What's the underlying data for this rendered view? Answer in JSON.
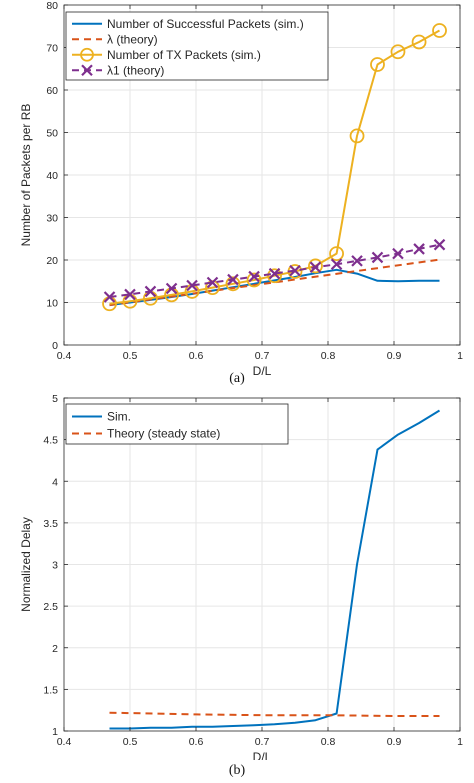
{
  "captions": {
    "a": "(a)",
    "b": "(b)"
  },
  "colors": {
    "blue": "#0072BD",
    "orange": "#D95319",
    "gold": "#EDB120",
    "purple": "#7E2F8E",
    "grid": "#e6e6e6",
    "axis": "#262626"
  },
  "chart_data": [
    {
      "type": "line",
      "xlabel": "D/L",
      "ylabel": "Number of Packets per RB",
      "xlim": [
        0.4,
        1.0
      ],
      "ylim": [
        0,
        80
      ],
      "xticks": [
        0.4,
        0.5,
        0.6,
        0.7,
        0.8,
        0.9,
        1
      ],
      "xtick_labels": [
        "0.4",
        "0.5",
        "0.6",
        "0.7",
        "0.8",
        "0.9",
        "1"
      ],
      "yticks": [
        0,
        10,
        20,
        30,
        40,
        50,
        60,
        70,
        80
      ],
      "ytick_labels": [
        "0",
        "10",
        "20",
        "30",
        "40",
        "50",
        "60",
        "70",
        "80"
      ],
      "grid": true,
      "legend_position": "top-left",
      "series": [
        {
          "name": "Number of Successful Packets (sim.)",
          "style": "solid",
          "color": "#0072BD",
          "marker": "none",
          "x": [
            0.469,
            0.5,
            0.531,
            0.563,
            0.594,
            0.625,
            0.656,
            0.688,
            0.719,
            0.75,
            0.781,
            0.813,
            0.844,
            0.875,
            0.906,
            0.938,
            0.969
          ],
          "y": [
            9.4,
            10.0,
            10.6,
            11.3,
            12.0,
            12.8,
            13.6,
            14.4,
            15.2,
            16.0,
            16.9,
            17.7,
            16.8,
            15.1,
            15.0,
            15.1,
            15.1
          ]
        },
        {
          "name": "λ (theory)",
          "style": "dashed",
          "color": "#D95319",
          "marker": "none",
          "x": [
            0.469,
            0.969
          ],
          "y": [
            9.4,
            20.1
          ]
        },
        {
          "name": "Number of TX Packets (sim.)",
          "style": "solid",
          "color": "#EDB120",
          "marker": "circle",
          "x": [
            0.469,
            0.5,
            0.531,
            0.563,
            0.594,
            0.625,
            0.656,
            0.688,
            0.719,
            0.75,
            0.781,
            0.813,
            0.844,
            0.875,
            0.906,
            0.938,
            0.969
          ],
          "y": [
            9.7,
            10.3,
            11.0,
            11.8,
            12.6,
            13.5,
            14.4,
            15.3,
            16.3,
            17.3,
            18.6,
            21.5,
            49.2,
            66.0,
            69.0,
            71.3,
            74.0
          ]
        },
        {
          "name": "λ1 (theory)",
          "style": "dashed",
          "color": "#7E2F8E",
          "marker": "x",
          "x": [
            0.469,
            0.5,
            0.531,
            0.563,
            0.594,
            0.625,
            0.656,
            0.688,
            0.719,
            0.75,
            0.781,
            0.813,
            0.844,
            0.875,
            0.906,
            0.938,
            0.969
          ],
          "y": [
            11.3,
            11.9,
            12.6,
            13.3,
            14.0,
            14.7,
            15.4,
            16.1,
            16.8,
            17.5,
            18.3,
            19.0,
            19.8,
            20.6,
            21.5,
            22.6,
            23.6
          ]
        }
      ]
    },
    {
      "type": "line",
      "xlabel": "D/L",
      "ylabel": "Normalized Delay",
      "xlim": [
        0.4,
        1.0
      ],
      "ylim": [
        1,
        5
      ],
      "xticks": [
        0.4,
        0.5,
        0.6,
        0.7,
        0.8,
        0.9,
        1
      ],
      "xtick_labels": [
        "0.4",
        "0.5",
        "0.6",
        "0.7",
        "0.8",
        "0.9",
        "1"
      ],
      "yticks": [
        1,
        1.5,
        2,
        2.5,
        3,
        3.5,
        4,
        4.5,
        5
      ],
      "ytick_labels": [
        "1",
        "1.5",
        "2",
        "2.5",
        "3",
        "3.5",
        "4",
        "4.5",
        "5"
      ],
      "grid": true,
      "legend_position": "top-left",
      "series": [
        {
          "name": "Sim.",
          "style": "solid",
          "color": "#0072BD",
          "marker": "none",
          "x": [
            0.469,
            0.5,
            0.531,
            0.563,
            0.594,
            0.625,
            0.656,
            0.688,
            0.719,
            0.75,
            0.781,
            0.813,
            0.844,
            0.875,
            0.906,
            0.938,
            0.969
          ],
          "y": [
            1.03,
            1.03,
            1.04,
            1.04,
            1.05,
            1.05,
            1.06,
            1.07,
            1.08,
            1.1,
            1.13,
            1.21,
            3.0,
            4.38,
            4.56,
            4.7,
            4.85
          ]
        },
        {
          "name": "Theory (steady state)",
          "style": "dashed",
          "color": "#D95319",
          "marker": "none",
          "x": [
            0.469,
            0.6,
            0.7,
            0.8,
            0.9,
            0.969
          ],
          "y": [
            1.22,
            1.2,
            1.19,
            1.19,
            1.18,
            1.18
          ]
        }
      ]
    }
  ]
}
